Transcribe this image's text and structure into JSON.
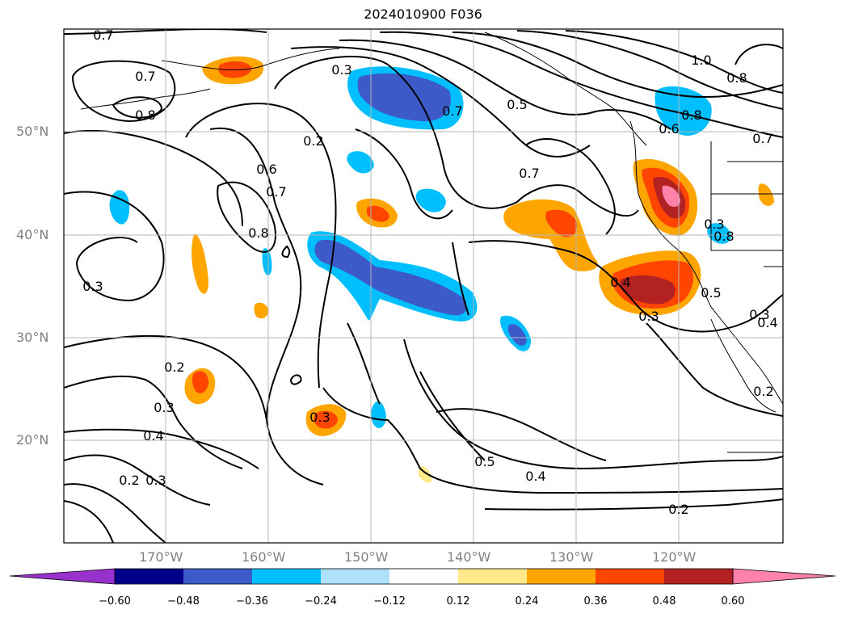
{
  "title": "2024010900 F036",
  "lat_labels": [
    "50°N",
    "40°N",
    "30°N",
    "20°N"
  ],
  "lon_labels": [
    "170°W",
    "160°W",
    "150°W",
    "140°W",
    "130°W",
    "120°W"
  ],
  "contour_labels": [
    "0.7",
    "0.7",
    "0.8",
    "0.3",
    "0.3",
    "0.7",
    "0.5",
    "0.7",
    "0.2",
    "0.6",
    "0.7",
    "0.8",
    "1.0",
    "0.8",
    "0.8",
    "0.6",
    "0.7",
    "0.8",
    "0.3",
    "0.4",
    "0.5",
    "0.3",
    "0.3",
    "0.2",
    "0.3",
    "0.4",
    "0.3",
    "0.3",
    "0.2",
    "0.5",
    "0.4",
    "0.2",
    "0.2",
    "0.4"
  ],
  "colorbar": {
    "ticks": [
      "−0.60",
      "−0.48",
      "−0.36",
      "−0.24",
      "−0.12",
      "0.12",
      "0.24",
      "0.36",
      "0.48",
      "0.60"
    ],
    "colors": [
      "#9932CC",
      "#00008B",
      "#3C5AC8",
      "#00BFFF",
      "#AEE1FA",
      "#FFFFFF",
      "#FFE98A",
      "#FFA500",
      "#FF4500",
      "#B22222",
      "#FF82AA"
    ]
  },
  "field_colors": {
    "neg_light": "#AEE1FA",
    "neg_mid": "#00BFFF",
    "neg_strong": "#3C5AC8",
    "pos_light": "#FFE98A",
    "pos_mid": "#FFA500",
    "pos_strong": "#FF4500",
    "pos_dark": "#B22222",
    "pos_max": "#FF82AA"
  }
}
